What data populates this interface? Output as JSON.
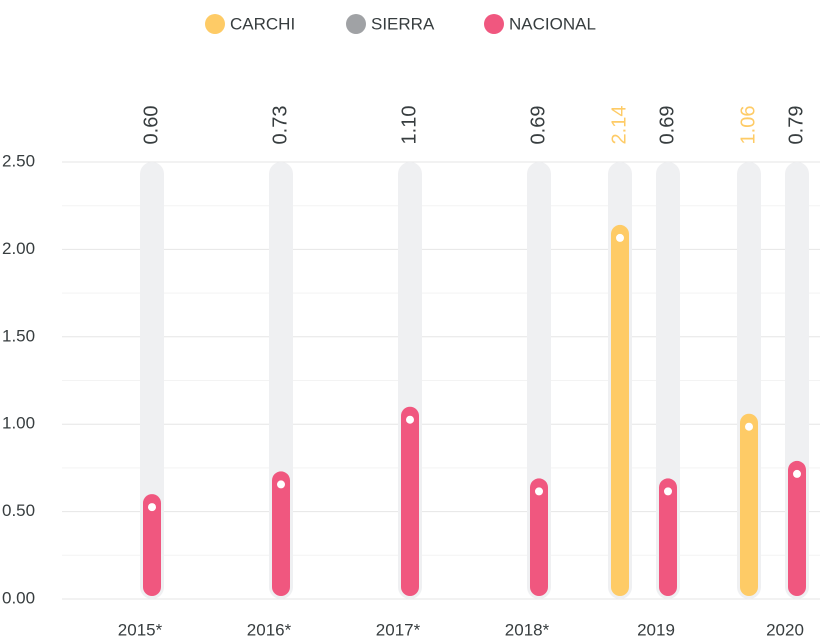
{
  "chart_data": {
    "type": "bar",
    "categories": [
      "2015*",
      "2016*",
      "2017*",
      "2018*",
      "2019",
      "2020"
    ],
    "series": [
      {
        "name": "CARCHI",
        "color": "#fecb66",
        "values": [
          null,
          null,
          null,
          null,
          2.14,
          1.06
        ],
        "value_labels": [
          null,
          null,
          null,
          null,
          "2.14",
          "1.06"
        ]
      },
      {
        "name": "SIERRA",
        "color": "#a0a2a5",
        "values": [
          null,
          null,
          null,
          null,
          null,
          null
        ],
        "value_labels": [
          null,
          null,
          null,
          null,
          null,
          null
        ]
      },
      {
        "name": "NACIONAL",
        "color": "#f0577f",
        "values": [
          0.6,
          0.73,
          1.1,
          0.69,
          0.69,
          0.79
        ],
        "value_labels": [
          "0.60",
          "0.73",
          "1.10",
          "0.69",
          "0.69",
          "0.79"
        ]
      }
    ],
    "ylim": [
      0,
      2.5
    ],
    "yticks": [
      {
        "value": 0,
        "label": "0.00"
      },
      {
        "value": 0.5,
        "label": "0.50"
      },
      {
        "value": 1,
        "label": "1.00"
      },
      {
        "value": 1.5,
        "label": "1.50"
      },
      {
        "value": 2,
        "label": "2.00"
      },
      {
        "value": 2.5,
        "label": "2.50"
      }
    ],
    "minor_yticks": [
      0.25,
      0.75,
      1.25,
      1.75,
      2.25
    ],
    "grid": true,
    "legend": "top"
  }
}
